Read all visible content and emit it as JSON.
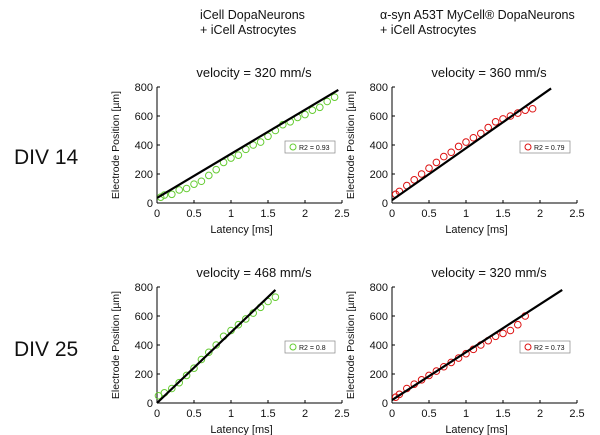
{
  "headers": {
    "col1": "iCell DopaNeurons\n+ iCell Astrocytes",
    "col2": "α-syn A53T MyCell® DopaNeurons\n+ iCell Astrocytes"
  },
  "rows": {
    "row1": "DIV 14",
    "row2": "DIV 25"
  },
  "colors": {
    "green": "#66cc33",
    "red": "#dd1111",
    "fit": "#000000"
  },
  "chart_data": [
    {
      "type": "scatter",
      "title": "velocity = 320 mm/s",
      "xlabel": "Latency [ms]",
      "ylabel": "Electrode Position [µm]",
      "xlim": [
        0,
        2.5
      ],
      "ylim": [
        0,
        800
      ],
      "xticks": [
        "0",
        "0.5",
        "1",
        "1.5",
        "2",
        "2.5"
      ],
      "yticks": [
        "0",
        "200",
        "400",
        "600",
        "800"
      ],
      "legend": "R2 = 0.93",
      "legend_position": "right",
      "series": [
        {
          "name": "data",
          "color": "green",
          "points": [
            [
              0.05,
              40
            ],
            [
              0.1,
              55
            ],
            [
              0.2,
              60
            ],
            [
              0.3,
              90
            ],
            [
              0.4,
              100
            ],
            [
              0.5,
              130
            ],
            [
              0.6,
              150
            ],
            [
              0.7,
              190
            ],
            [
              0.8,
              230
            ],
            [
              0.9,
              280
            ],
            [
              1.0,
              310
            ],
            [
              1.1,
              330
            ],
            [
              1.2,
              370
            ],
            [
              1.3,
              400
            ],
            [
              1.4,
              420
            ],
            [
              1.5,
              460
            ],
            [
              1.6,
              500
            ],
            [
              1.7,
              540
            ],
            [
              1.8,
              560
            ],
            [
              1.9,
              590
            ],
            [
              2.0,
              610
            ],
            [
              2.1,
              640
            ],
            [
              2.2,
              660
            ],
            [
              2.3,
              700
            ],
            [
              2.4,
              730
            ]
          ]
        }
      ],
      "fit": {
        "x": [
          0,
          2.45
        ],
        "y": [
          35,
          780
        ]
      }
    },
    {
      "type": "scatter",
      "title": "velocity = 360 mm/s",
      "xlabel": "Latency [ms]",
      "ylabel": "Electrode Position [µm]",
      "xlim": [
        0,
        2.5
      ],
      "ylim": [
        0,
        800
      ],
      "xticks": [
        "0",
        "0.5",
        "1",
        "1.5",
        "2",
        "2.5"
      ],
      "yticks": [
        "0",
        "200",
        "400",
        "600",
        "800"
      ],
      "legend": "R2 = 0.79",
      "legend_position": "right",
      "series": [
        {
          "name": "data",
          "color": "red",
          "points": [
            [
              0.05,
              60
            ],
            [
              0.1,
              80
            ],
            [
              0.2,
              120
            ],
            [
              0.3,
              160
            ],
            [
              0.4,
              200
            ],
            [
              0.5,
              240
            ],
            [
              0.6,
              280
            ],
            [
              0.7,
              320
            ],
            [
              0.8,
              350
            ],
            [
              0.9,
              390
            ],
            [
              1.0,
              420
            ],
            [
              1.1,
              450
            ],
            [
              1.2,
              480
            ],
            [
              1.3,
              520
            ],
            [
              1.4,
              560
            ],
            [
              1.5,
              580
            ],
            [
              1.6,
              600
            ],
            [
              1.7,
              620
            ],
            [
              1.8,
              640
            ],
            [
              1.9,
              650
            ]
          ]
        }
      ],
      "fit": {
        "x": [
          0,
          2.15
        ],
        "y": [
          20,
          790
        ]
      }
    },
    {
      "type": "scatter",
      "title": "velocity = 468 mm/s",
      "xlabel": "Latency [ms]",
      "ylabel": "Electrode Position [µm]",
      "xlim": [
        0,
        2.5
      ],
      "ylim": [
        0,
        800
      ],
      "xticks": [
        "0",
        "0.5",
        "1",
        "1.5",
        "2",
        "2.5"
      ],
      "yticks": [
        "0",
        "200",
        "400",
        "600",
        "800"
      ],
      "legend": "R2 = 0.8",
      "legend_position": "right",
      "series": [
        {
          "name": "data",
          "color": "green",
          "points": [
            [
              0.02,
              50
            ],
            [
              0.1,
              70
            ],
            [
              0.2,
              100
            ],
            [
              0.3,
              140
            ],
            [
              0.4,
              190
            ],
            [
              0.5,
              240
            ],
            [
              0.6,
              300
            ],
            [
              0.7,
              350
            ],
            [
              0.8,
              400
            ],
            [
              0.9,
              460
            ],
            [
              1.0,
              500
            ],
            [
              1.1,
              540
            ],
            [
              1.2,
              580
            ],
            [
              1.3,
              620
            ],
            [
              1.4,
              660
            ],
            [
              1.5,
              700
            ],
            [
              1.6,
              730
            ]
          ]
        }
      ],
      "fit": {
        "x": [
          0,
          1.6
        ],
        "y": [
          0,
          780
        ]
      }
    },
    {
      "type": "scatter",
      "title": "velocity = 320 mm/s",
      "xlabel": "Latency [ms]",
      "ylabel": "Electrode Position [µm]",
      "xlim": [
        0,
        2.5
      ],
      "ylim": [
        0,
        800
      ],
      "xticks": [
        "0",
        "0.5",
        "1",
        "1.5",
        "2",
        "2.5"
      ],
      "yticks": [
        "0",
        "200",
        "400",
        "600",
        "800"
      ],
      "legend": "R2 = 0.73",
      "legend_position": "right",
      "series": [
        {
          "name": "data",
          "color": "red",
          "points": [
            [
              0.05,
              40
            ],
            [
              0.1,
              60
            ],
            [
              0.2,
              100
            ],
            [
              0.3,
              130
            ],
            [
              0.4,
              160
            ],
            [
              0.5,
              190
            ],
            [
              0.6,
              220
            ],
            [
              0.7,
              250
            ],
            [
              0.8,
              280
            ],
            [
              0.9,
              310
            ],
            [
              1.0,
              340
            ],
            [
              1.1,
              370
            ],
            [
              1.2,
              400
            ],
            [
              1.3,
              430
            ],
            [
              1.4,
              460
            ],
            [
              1.5,
              480
            ],
            [
              1.6,
              500
            ],
            [
              1.7,
              540
            ],
            [
              1.8,
              600
            ]
          ]
        }
      ],
      "fit": {
        "x": [
          0,
          2.3
        ],
        "y": [
          20,
          780
        ]
      }
    }
  ]
}
